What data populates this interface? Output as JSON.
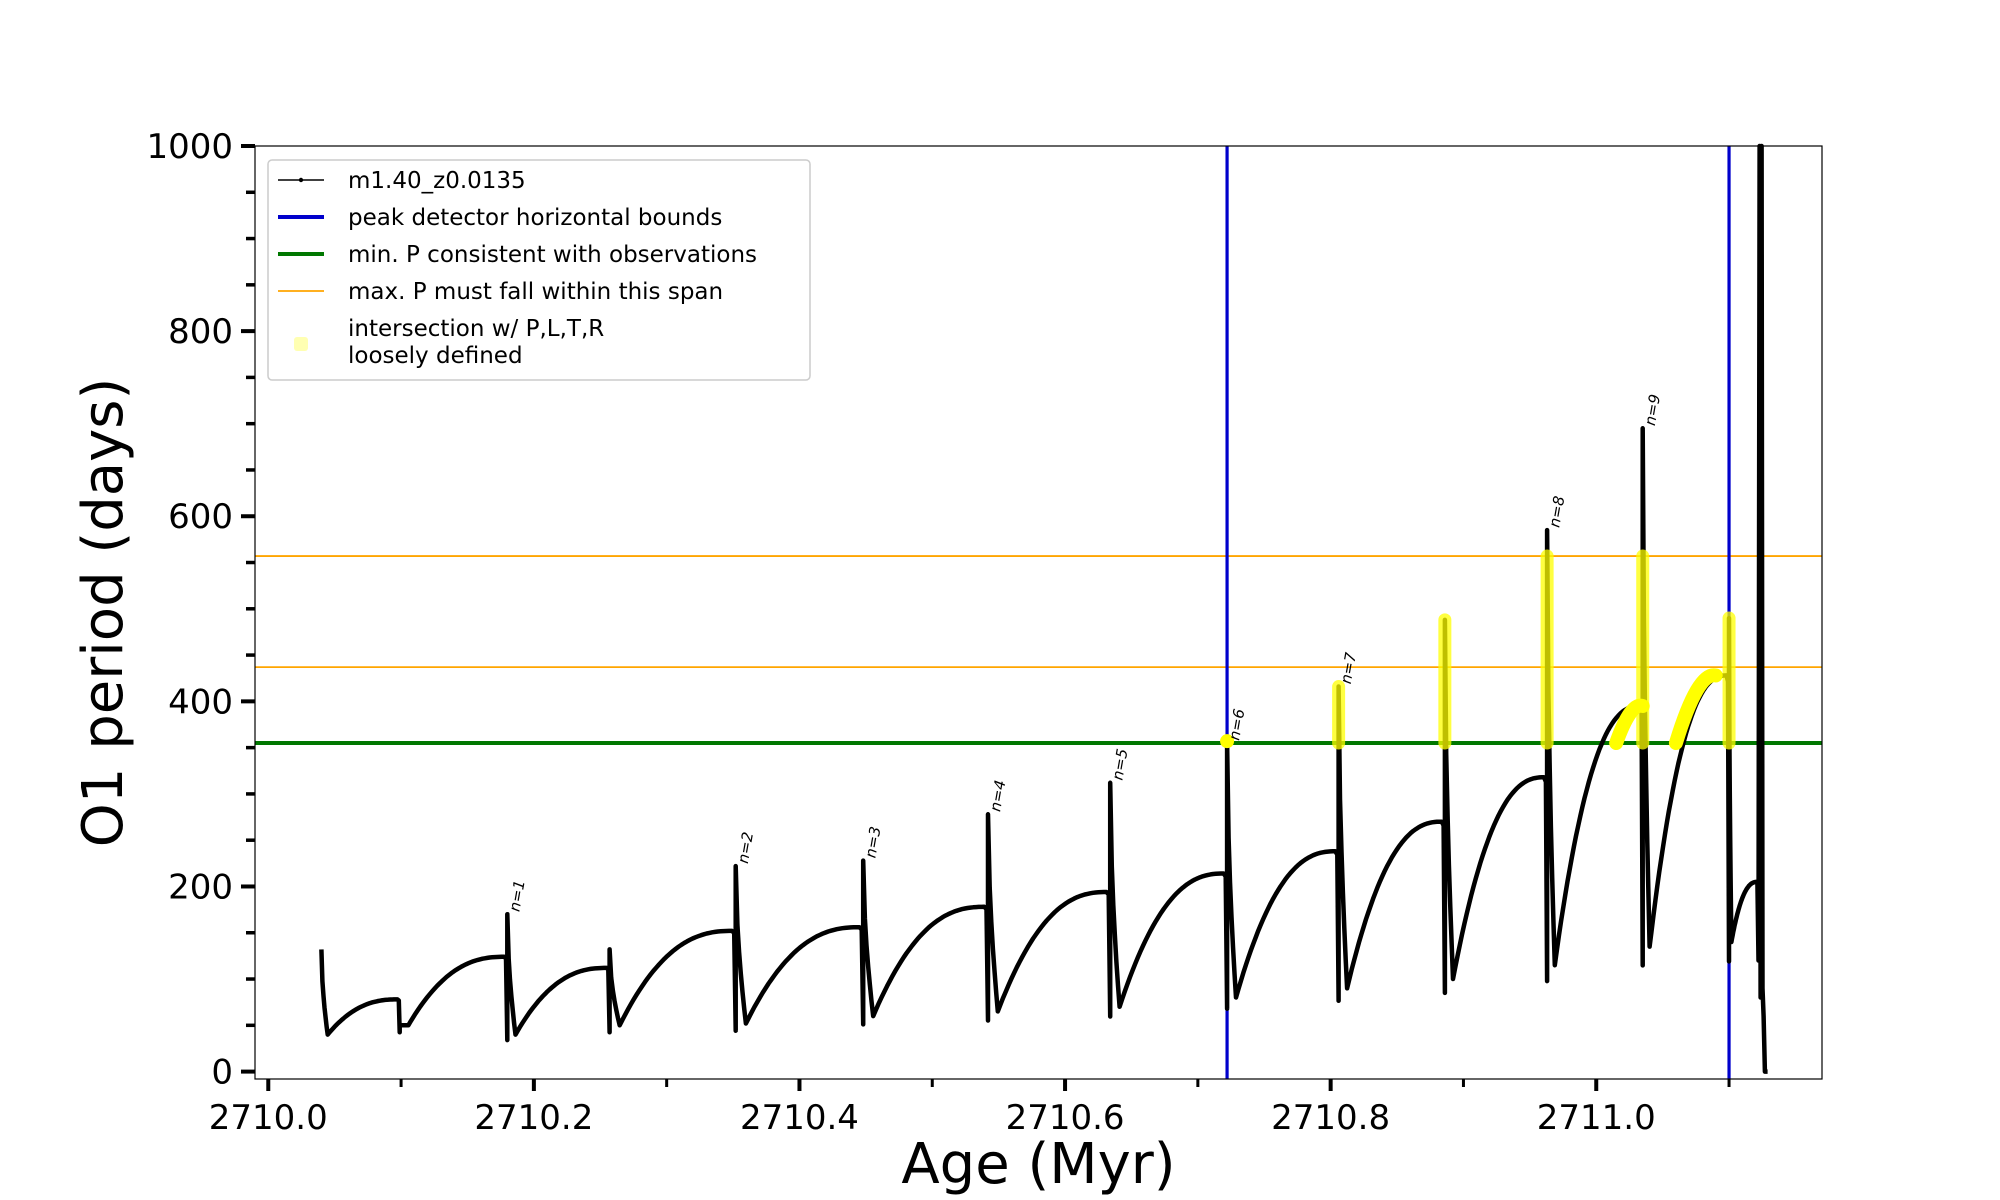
{
  "chart_data": {
    "type": "line",
    "xlabel": "Age (Myr)",
    "ylabel": "O1 period (days)",
    "xlim": [
      2709.99,
      2711.17
    ],
    "ylim": [
      -8,
      1000
    ],
    "x_ticks": [
      {
        "value": 2710.0,
        "label": "2710.0"
      },
      {
        "value": 2710.2,
        "label": "2710.2"
      },
      {
        "value": 2710.4,
        "label": "2710.4"
      },
      {
        "value": 2710.6,
        "label": "2710.6"
      },
      {
        "value": 2710.8,
        "label": "2710.8"
      },
      {
        "value": 2711.0,
        "label": "2711.0"
      }
    ],
    "x_minor_step": 0.1,
    "y_ticks": [
      {
        "value": 0,
        "label": "0"
      },
      {
        "value": 200,
        "label": "200"
      },
      {
        "value": 400,
        "label": "400"
      },
      {
        "value": 600,
        "label": "600"
      },
      {
        "value": 800,
        "label": "800"
      },
      {
        "value": 1000,
        "label": "1000"
      }
    ],
    "y_minor_step": 50,
    "grid": false,
    "legend_position": "top-left",
    "legend": [
      {
        "label": "m1.40_z0.0135",
        "style": "line-marker",
        "color": "#000000"
      },
      {
        "label": "peak detector horizontal bounds",
        "style": "line-thick",
        "color": "#0000cc"
      },
      {
        "label": "min. P consistent with observations",
        "style": "line-thick",
        "color": "#007700"
      },
      {
        "label": "max. P must fall within this span",
        "style": "line-thin",
        "color": "#ffa500"
      },
      {
        "label": "intersection w/ P,L,T,R",
        "label2": "loosely defined",
        "style": "point",
        "color": "#ffff66"
      }
    ],
    "colors": {
      "model": "#000000",
      "bounds": "#0000cc",
      "min_p": "#007700",
      "max_p_span": "#ffa500",
      "intersection": "#ffff00"
    },
    "vertical_lines": [
      2710.722,
      2711.1
    ],
    "min_P": 355,
    "max_P_span": [
      437,
      557
    ],
    "model_series": {
      "name": "m1.40_z0.0135",
      "cycles": [
        {
          "start": 2710.04,
          "end": 2710.099,
          "peak": 132,
          "min": 40,
          "top": 78
        },
        {
          "start": 2710.099,
          "end": 2710.18,
          "peak": 50,
          "min": 50,
          "top": 124
        },
        {
          "start": 2710.18,
          "end": 2710.257,
          "peak": 170,
          "min": 40,
          "top": 112
        },
        {
          "start": 2710.257,
          "end": 2710.352,
          "peak": 132,
          "min": 50,
          "top": 152
        },
        {
          "start": 2710.352,
          "end": 2710.448,
          "peak": 222,
          "min": 52,
          "top": 156
        },
        {
          "start": 2710.448,
          "end": 2710.542,
          "peak": 228,
          "min": 60,
          "top": 178
        },
        {
          "start": 2710.542,
          "end": 2710.634,
          "peak": 278,
          "min": 65,
          "top": 194
        },
        {
          "start": 2710.634,
          "end": 2710.722,
          "peak": 312,
          "min": 70,
          "top": 214
        },
        {
          "start": 2710.722,
          "end": 2710.806,
          "peak": 355,
          "min": 80,
          "top": 238
        },
        {
          "start": 2710.806,
          "end": 2710.886,
          "peak": 416,
          "min": 90,
          "top": 270
        },
        {
          "start": 2710.886,
          "end": 2710.963,
          "peak": 488,
          "min": 100,
          "top": 318
        },
        {
          "start": 2710.963,
          "end": 2711.035,
          "peak": 585,
          "min": 115,
          "top": 395
        },
        {
          "start": 2711.035,
          "end": 2711.1,
          "peak": 695,
          "min": 135,
          "top": 428
        },
        {
          "start": 2711.1,
          "end": 2711.122,
          "peak": 490,
          "min": 140,
          "top": 205
        }
      ],
      "final_spike": {
        "x": 2711.123,
        "top": 1000,
        "end_x": 2711.127,
        "end_y": 0
      }
    },
    "peak_labels": [
      {
        "x": 2710.18,
        "y": 170,
        "label": "n=1"
      },
      {
        "x": 2710.352,
        "y": 222,
        "label": "n=2"
      },
      {
        "x": 2710.448,
        "y": 228,
        "label": "n=3"
      },
      {
        "x": 2710.542,
        "y": 278,
        "label": "n=4"
      },
      {
        "x": 2710.634,
        "y": 312,
        "label": "n=5"
      },
      {
        "x": 2710.722,
        "y": 355,
        "label": "n=6"
      },
      {
        "x": 2710.806,
        "y": 416,
        "label": "n=7"
      },
      {
        "x": 2710.963,
        "y": 585,
        "label": "n=8"
      },
      {
        "x": 2711.035,
        "y": 695,
        "label": "n=9"
      }
    ],
    "intersections": [
      {
        "type": "dot",
        "x": 2710.722,
        "y": 357
      },
      {
        "type": "vertical",
        "x": 2710.806,
        "y_from": 355,
        "y_to": 416
      },
      {
        "type": "vertical",
        "x": 2710.886,
        "y_from": 355,
        "y_to": 488
      },
      {
        "type": "vertical",
        "x": 2710.963,
        "y_from": 355,
        "y_to": 557
      },
      {
        "type": "vertical",
        "x": 2711.035,
        "y_from": 355,
        "y_to": 557
      },
      {
        "type": "curve",
        "x_from": 2711.015,
        "x_to": 2711.035,
        "y_from": 355,
        "y_to": 395
      },
      {
        "type": "curve",
        "x_from": 2711.06,
        "x_to": 2711.09,
        "y_from": 355,
        "y_to": 428
      },
      {
        "type": "vertical",
        "x": 2711.1,
        "y_from": 355,
        "y_to": 490
      }
    ]
  }
}
